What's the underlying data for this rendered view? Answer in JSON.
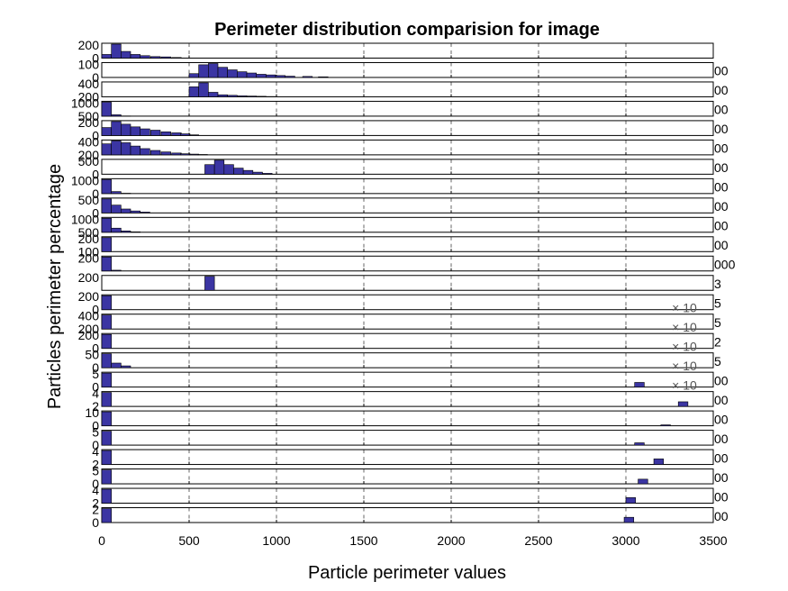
{
  "chart_data": {
    "type": "bar",
    "title": "Perimeter distribution comparision for image",
    "xlabel": "Particle perimeter values",
    "ylabel": "Particles perimeter percentage",
    "xlim": [
      0,
      3500
    ],
    "x_ticks": [
      0,
      500,
      1000,
      1500,
      2000,
      2500,
      3000,
      3500
    ],
    "bar_color": "#3b35a3",
    "grid": true,
    "panels": [
      {
        "yticks": [
          "200",
          "0"
        ],
        "right_label": "",
        "bin_width": 55,
        "bins": [
          [
            0,
            60
          ],
          [
            55,
            230
          ],
          [
            110,
            110
          ],
          [
            165,
            60
          ],
          [
            220,
            40
          ],
          [
            280,
            25
          ],
          [
            340,
            20
          ],
          [
            400,
            10
          ]
        ]
      },
      {
        "yticks": [
          "100",
          "0"
        ],
        "right_label": "00",
        "bin_width": 55,
        "bins": [
          [
            500,
            30
          ],
          [
            555,
            100
          ],
          [
            610,
            110
          ],
          [
            665,
            80
          ],
          [
            720,
            60
          ],
          [
            775,
            45
          ],
          [
            830,
            35
          ],
          [
            885,
            25
          ],
          [
            940,
            20
          ],
          [
            995,
            15
          ],
          [
            1050,
            10
          ],
          [
            1150,
            8
          ],
          [
            1240,
            5
          ]
        ]
      },
      {
        "yticks": [
          "400",
          "200"
        ],
        "right_label": "00",
        "bin_width": 55,
        "bins": [
          [
            500,
            200
          ],
          [
            555,
            280
          ],
          [
            610,
            90
          ],
          [
            665,
            40
          ],
          [
            720,
            30
          ],
          [
            775,
            20
          ],
          [
            830,
            15
          ],
          [
            885,
            10
          ],
          [
            940,
            5
          ]
        ]
      },
      {
        "yticks": [
          "1000",
          "500"
        ],
        "right_label": "00",
        "bin_width": 55,
        "bins": [
          [
            0,
            800
          ],
          [
            55,
            80
          ],
          [
            110,
            10
          ]
        ]
      },
      {
        "yticks": [
          "200",
          "0"
        ],
        "right_label": "00",
        "bin_width": 55,
        "bins": [
          [
            0,
            120
          ],
          [
            55,
            210
          ],
          [
            110,
            170
          ],
          [
            165,
            130
          ],
          [
            220,
            100
          ],
          [
            280,
            80
          ],
          [
            340,
            55
          ],
          [
            400,
            40
          ],
          [
            450,
            25
          ],
          [
            500,
            10
          ]
        ]
      },
      {
        "yticks": [
          "400",
          "200"
        ],
        "right_label": "00",
        "bin_width": 55,
        "bins": [
          [
            0,
            300
          ],
          [
            55,
            380
          ],
          [
            110,
            330
          ],
          [
            165,
            240
          ],
          [
            220,
            170
          ],
          [
            280,
            120
          ],
          [
            340,
            80
          ],
          [
            400,
            50
          ],
          [
            450,
            30
          ],
          [
            500,
            20
          ],
          [
            550,
            10
          ]
        ]
      },
      {
        "yticks": [
          "500",
          "0"
        ],
        "right_label": "00",
        "bin_width": 55,
        "bins": [
          [
            590,
            330
          ],
          [
            645,
            480
          ],
          [
            700,
            330
          ],
          [
            755,
            210
          ],
          [
            810,
            130
          ],
          [
            865,
            70
          ],
          [
            920,
            30
          ]
        ]
      },
      {
        "yticks": [
          "1000",
          "0"
        ],
        "right_label": "00",
        "bin_width": 55,
        "bins": [
          [
            0,
            900
          ],
          [
            55,
            130
          ],
          [
            110,
            20
          ]
        ]
      },
      {
        "yticks": [
          "500",
          "0"
        ],
        "right_label": "00",
        "bin_width": 55,
        "bins": [
          [
            0,
            500
          ],
          [
            55,
            280
          ],
          [
            110,
            140
          ],
          [
            165,
            70
          ],
          [
            220,
            30
          ]
        ]
      },
      {
        "yticks": [
          "1000",
          "500"
        ],
        "right_label": "00",
        "bin_width": 55,
        "bins": [
          [
            0,
            950
          ],
          [
            55,
            280
          ],
          [
            110,
            90
          ],
          [
            165,
            30
          ]
        ]
      },
      {
        "yticks": [
          "200",
          "100"
        ],
        "right_label": "00",
        "bin_width": 55,
        "bins": [
          [
            0,
            280
          ]
        ]
      },
      {
        "yticks": [
          "200",
          ""
        ],
        "right_label": "000",
        "bin_width": 55,
        "bins": [
          [
            0,
            280
          ],
          [
            55,
            15
          ]
        ]
      },
      {
        "yticks": [
          "200",
          ""
        ],
        "right_label": "3",
        "bin_width": 55,
        "bins": [
          [
            590,
            300
          ]
        ]
      },
      {
        "yticks": [
          "200",
          "0"
        ],
        "right_label": "5",
        "bin_width": 55,
        "bins": [
          [
            0,
            280
          ]
        ]
      },
      {
        "yticks": [
          "400",
          "200"
        ],
        "right_label": "5",
        "bin_width": 55,
        "bins": [
          [
            0,
            290
          ]
        ]
      },
      {
        "yticks": [
          "200",
          "0"
        ],
        "right_label": "2",
        "bin_width": 55,
        "bins": [
          [
            0,
            290
          ]
        ]
      },
      {
        "yticks": [
          "50",
          "0"
        ],
        "right_label": "5",
        "bin_width": 55,
        "bins": [
          [
            0,
            60
          ],
          [
            55,
            20
          ],
          [
            110,
            8
          ]
        ]
      },
      {
        "yticks": [
          "5",
          "0"
        ],
        "right_label": "00",
        "bin_width": 55,
        "bins": [
          [
            0,
            6
          ],
          [
            3050,
            2
          ]
        ]
      },
      {
        "yticks": [
          "4",
          "2"
        ],
        "right_label": "00",
        "bin_width": 55,
        "bins": [
          [
            0,
            6
          ],
          [
            3300,
            2
          ]
        ]
      },
      {
        "yticks": [
          "10",
          "0"
        ],
        "right_label": "00",
        "bin_width": 55,
        "bins": [
          [
            0,
            15
          ],
          [
            3200,
            1
          ]
        ]
      },
      {
        "yticks": [
          "5",
          "0"
        ],
        "right_label": "00",
        "bin_width": 55,
        "bins": [
          [
            0,
            6
          ],
          [
            3050,
            1
          ]
        ]
      },
      {
        "yticks": [
          "4",
          "2"
        ],
        "right_label": "00",
        "bin_width": 55,
        "bins": [
          [
            0,
            5
          ],
          [
            3160,
            2
          ]
        ]
      },
      {
        "yticks": [
          "5",
          "0"
        ],
        "right_label": "00",
        "bin_width": 55,
        "bins": [
          [
            0,
            6
          ],
          [
            3070,
            2
          ]
        ]
      },
      {
        "yticks": [
          "4",
          "2"
        ],
        "right_label": "00",
        "bin_width": 55,
        "bins": [
          [
            0,
            5
          ],
          [
            3000,
            2
          ]
        ]
      },
      {
        "yticks": [
          "2",
          "0"
        ],
        "right_label": "00",
        "bin_width": 55,
        "bins": [
          [
            0,
            4
          ],
          [
            2990,
            1.5
          ]
        ]
      }
    ],
    "multiplier_labels": [
      "× 10",
      "× 10",
      "× 10",
      "× 10",
      "× 10"
    ]
  }
}
